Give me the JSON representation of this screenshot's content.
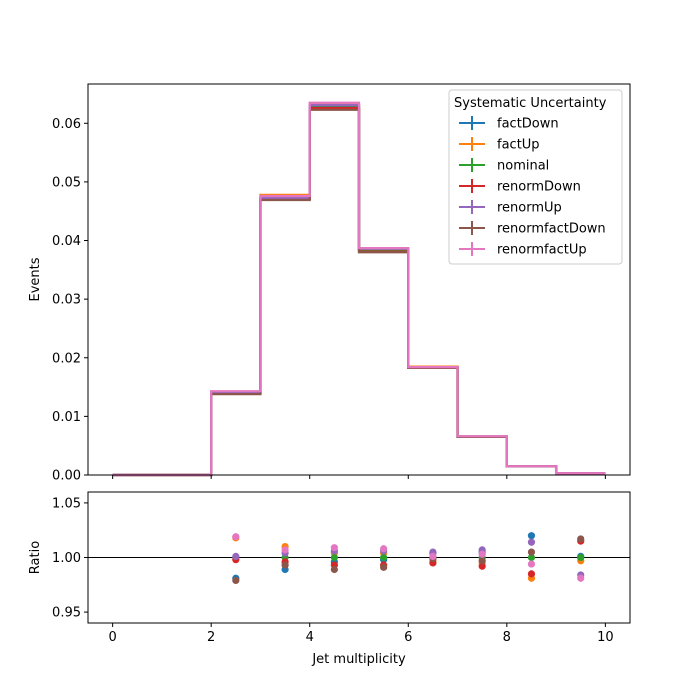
{
  "chart_data": [
    {
      "type": "step",
      "xlabel": "",
      "ylabel": "Events",
      "xlim": [
        -0.5,
        10.5
      ],
      "ylim": [
        0.0,
        0.0667
      ],
      "x_ticks": [
        0,
        2,
        4,
        6,
        8,
        10
      ],
      "x_tick_labels_shown": false,
      "y_ticks": [
        0.0,
        0.01,
        0.02,
        0.03,
        0.04,
        0.05,
        0.06
      ],
      "y_tick_labels": [
        "0.00",
        "0.01",
        "0.02",
        "0.03",
        "0.04",
        "0.05",
        "0.06"
      ],
      "bin_edges": [
        0,
        1,
        2,
        3,
        4,
        5,
        6,
        7,
        8,
        9,
        10
      ],
      "legend": {
        "title": "Systematic Uncertainty",
        "placement": "upper right"
      },
      "series": [
        {
          "name": "factDown",
          "color": "#1f77b4",
          "values": [
            0.0,
            0.0,
            0.0139,
            0.0471,
            0.0627,
            0.0384,
            0.0183,
            0.0065,
            0.0015,
            0.0003
          ]
        },
        {
          "name": "factUp",
          "color": "#ff7f0e",
          "values": [
            0.0,
            0.0,
            0.0141,
            0.0478,
            0.0632,
            0.0386,
            0.0185,
            0.0066,
            0.0015,
            0.0003
          ]
        },
        {
          "name": "nominal",
          "color": "#2ca02c",
          "values": [
            0.0,
            0.0,
            0.014,
            0.0472,
            0.063,
            0.0384,
            0.0184,
            0.0065,
            0.0015,
            0.0003
          ]
        },
        {
          "name": "renormDown",
          "color": "#d62728",
          "values": [
            0.0,
            0.0,
            0.014,
            0.0471,
            0.0626,
            0.0381,
            0.0183,
            0.0065,
            0.0015,
            0.0003
          ]
        },
        {
          "name": "renormUp",
          "color": "#9467bd",
          "values": [
            0.0,
            0.0,
            0.0141,
            0.0473,
            0.0631,
            0.0386,
            0.0184,
            0.0066,
            0.0015,
            0.0003
          ]
        },
        {
          "name": "renormfactDown",
          "color": "#8c564b",
          "values": [
            0.0,
            0.0,
            0.0138,
            0.0469,
            0.0623,
            0.038,
            0.0183,
            0.0065,
            0.0015,
            0.0003
          ]
        },
        {
          "name": "renormfactUp",
          "color": "#e377c2",
          "values": [
            0.0,
            0.0,
            0.0143,
            0.0476,
            0.0635,
            0.0387,
            0.0184,
            0.0066,
            0.0015,
            0.0003
          ]
        }
      ]
    },
    {
      "type": "scatter",
      "xlabel": "Jet multiplicity",
      "ylabel": "Ratio",
      "xlim": [
        -0.5,
        10.5
      ],
      "ylim": [
        0.94,
        1.06
      ],
      "x_ticks": [
        0,
        2,
        4,
        6,
        8,
        10
      ],
      "x_tick_labels": [
        "0",
        "2",
        "4",
        "6",
        "8",
        "10"
      ],
      "y_ticks": [
        0.95,
        1.0,
        1.05
      ],
      "y_tick_labels": [
        "0.95",
        "1.00",
        "1.05"
      ],
      "reference_line": 1.0,
      "x": [
        2.5,
        3.5,
        4.5,
        5.5,
        6.5,
        7.5,
        8.5,
        9.5
      ],
      "series": [
        {
          "name": "factDown",
          "color": "#1f77b4",
          "values": [
            0.981,
            0.989,
            0.996,
            0.998,
            1.004,
            1.005,
            1.02,
            1.001
          ]
        },
        {
          "name": "factUp",
          "color": "#ff7f0e",
          "values": [
            1.018,
            1.01,
            1.004,
            1.004,
            0.997,
            0.995,
            0.981,
            0.997
          ]
        },
        {
          "name": "nominal",
          "color": "#2ca02c",
          "values": [
            1.0,
            1.0,
            1.0,
            1.0,
            1.0,
            1.0,
            1.0,
            1.0
          ]
        },
        {
          "name": "renormDown",
          "color": "#d62728",
          "values": [
            0.998,
            0.996,
            0.993,
            0.993,
            0.995,
            0.992,
            0.985,
            1.015
          ]
        },
        {
          "name": "renormUp",
          "color": "#9467bd",
          "values": [
            1.001,
            1.004,
            1.006,
            1.006,
            1.005,
            1.007,
            1.014,
            0.984
          ]
        },
        {
          "name": "renormfactDown",
          "color": "#8c564b",
          "values": [
            0.979,
            0.993,
            0.989,
            0.991,
            0.999,
            0.997,
            1.005,
            1.017
          ]
        },
        {
          "name": "renormfactUp",
          "color": "#e377c2",
          "values": [
            1.019,
            1.007,
            1.009,
            1.008,
            1.001,
            1.003,
            0.994,
            0.981
          ]
        }
      ]
    }
  ]
}
